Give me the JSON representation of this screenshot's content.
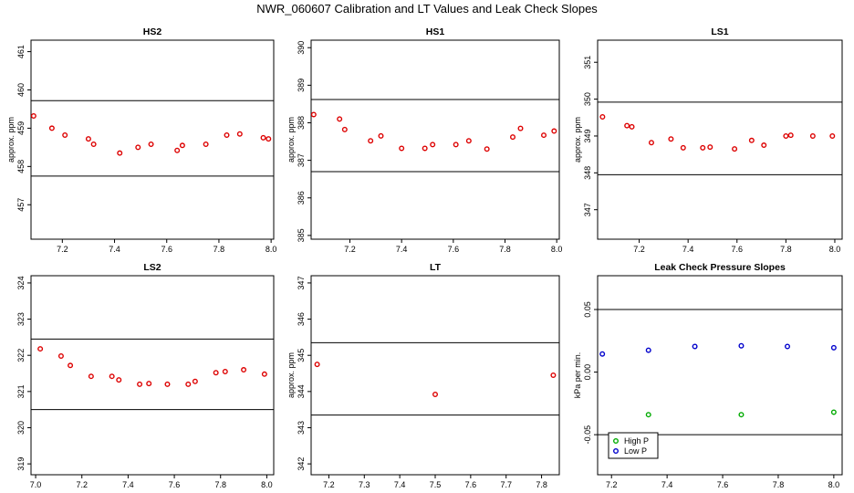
{
  "figure": {
    "title": "NWR_060607  Calibration and LT Values and Leak Check Slopes"
  },
  "chart_data": [
    {
      "type": "scatter",
      "title": "HS2",
      "ylabel": "approx. ppm",
      "xlim": [
        7.08,
        8.01
      ],
      "ylim": [
        456.1,
        461.3
      ],
      "xticks": [
        "7.2",
        "7.4",
        "7.6",
        "7.8",
        "8.0"
      ],
      "yticks": [
        "457",
        "458",
        "459",
        "460",
        "461"
      ],
      "hlines": [
        457.75,
        459.72
      ],
      "series": [
        {
          "color": "#dd0000",
          "x": [
            7.09,
            7.16,
            7.21,
            7.3,
            7.32,
            7.42,
            7.49,
            7.54,
            7.64,
            7.66,
            7.75,
            7.83,
            7.88,
            7.97,
            7.99
          ],
          "y": [
            459.32,
            459.0,
            458.82,
            458.72,
            458.58,
            458.35,
            458.5,
            458.58,
            458.42,
            458.55,
            458.58,
            458.82,
            458.85,
            458.75,
            458.72
          ]
        }
      ]
    },
    {
      "type": "scatter",
      "title": "HS1",
      "ylabel": "approx. ppm",
      "xlim": [
        7.05,
        8.01
      ],
      "ylim": [
        384.9,
        390.2
      ],
      "xticks": [
        "7.2",
        "7.4",
        "7.6",
        "7.8",
        "8.0"
      ],
      "yticks": [
        "385",
        "386",
        "387",
        "388",
        "389",
        "390"
      ],
      "hlines": [
        386.7,
        388.62
      ],
      "series": [
        {
          "color": "#dd0000",
          "x": [
            7.06,
            7.16,
            7.18,
            7.28,
            7.32,
            7.4,
            7.49,
            7.52,
            7.61,
            7.66,
            7.73,
            7.83,
            7.86,
            7.95,
            7.99
          ],
          "y": [
            388.22,
            388.1,
            387.82,
            387.52,
            387.65,
            387.32,
            387.32,
            387.42,
            387.42,
            387.52,
            387.3,
            387.62,
            387.85,
            387.67,
            387.78
          ]
        }
      ]
    },
    {
      "type": "scatter",
      "title": "LS1",
      "ylabel": "approx. ppm",
      "xlim": [
        7.03,
        8.03
      ],
      "ylim": [
        346.2,
        351.6
      ],
      "xticks": [
        "7.2",
        "7.4",
        "7.6",
        "7.8",
        "8.0"
      ],
      "yticks": [
        "347",
        "348",
        "349",
        "350",
        "351"
      ],
      "hlines": [
        347.95,
        349.92
      ],
      "series": [
        {
          "color": "#dd0000",
          "x": [
            7.05,
            7.15,
            7.17,
            7.25,
            7.33,
            7.38,
            7.46,
            7.49,
            7.59,
            7.66,
            7.71,
            7.8,
            7.82,
            7.91,
            7.99
          ],
          "y": [
            349.52,
            349.28,
            349.25,
            348.82,
            348.92,
            348.68,
            348.68,
            348.7,
            348.65,
            348.88,
            348.75,
            349.0,
            349.02,
            349.0,
            349.0
          ]
        }
      ]
    },
    {
      "type": "scatter",
      "title": "LS2",
      "ylabel": "",
      "xlim": [
        6.98,
        8.03
      ],
      "ylim": [
        318.7,
        324.2
      ],
      "xticks": [
        "7.0",
        "7.2",
        "7.4",
        "7.6",
        "7.8",
        "8.0"
      ],
      "yticks": [
        "319",
        "320",
        "321",
        "322",
        "323",
        "324"
      ],
      "hlines": [
        320.5,
        322.45
      ],
      "series": [
        {
          "color": "#dd0000",
          "x": [
            7.02,
            7.11,
            7.15,
            7.24,
            7.33,
            7.36,
            7.45,
            7.49,
            7.57,
            7.66,
            7.69,
            7.78,
            7.82,
            7.9,
            7.99
          ],
          "y": [
            322.18,
            321.98,
            321.72,
            321.42,
            321.42,
            321.32,
            321.2,
            321.22,
            321.2,
            321.2,
            321.28,
            321.52,
            321.55,
            321.6,
            321.48
          ]
        }
      ]
    },
    {
      "type": "scatter",
      "title": "LT",
      "ylabel": "approx. ppm",
      "xlim": [
        7.15,
        7.85
      ],
      "ylim": [
        341.7,
        347.2
      ],
      "xticks": [
        "7.2",
        "7.3",
        "7.4",
        "7.5",
        "7.6",
        "7.7",
        "7.8"
      ],
      "yticks": [
        "342",
        "343",
        "344",
        "345",
        "346",
        "347"
      ],
      "hlines": [
        343.35,
        345.35
      ],
      "series": [
        {
          "color": "#dd0000",
          "x": [
            7.167,
            7.5,
            7.833
          ],
          "y": [
            344.75,
            343.92,
            344.45
          ]
        }
      ]
    },
    {
      "type": "scatter",
      "title": "Leak Check Pressure Slopes",
      "ylabel": "kPa per min.",
      "xlim": [
        7.15,
        8.03
      ],
      "ylim": [
        -0.082,
        0.077
      ],
      "xticks": [
        "7.2",
        "7.4",
        "7.6",
        "7.8",
        "8.0"
      ],
      "yticks": [
        "-0.05",
        "0.00",
        "0.05"
      ],
      "hlines": [
        -0.05,
        0.05
      ],
      "legend_position": "bottom-left",
      "series": [
        {
          "name": "High P",
          "color": "#00aa00",
          "x": [
            7.333,
            7.667,
            8.0
          ],
          "y": [
            -0.034,
            -0.034,
            -0.032
          ]
        },
        {
          "name": "Low P",
          "color": "#0000cc",
          "x": [
            7.167,
            7.333,
            7.5,
            7.667,
            7.833,
            8.0
          ],
          "y": [
            0.0145,
            0.0175,
            0.0205,
            0.021,
            0.0205,
            0.0195
          ]
        }
      ]
    }
  ]
}
